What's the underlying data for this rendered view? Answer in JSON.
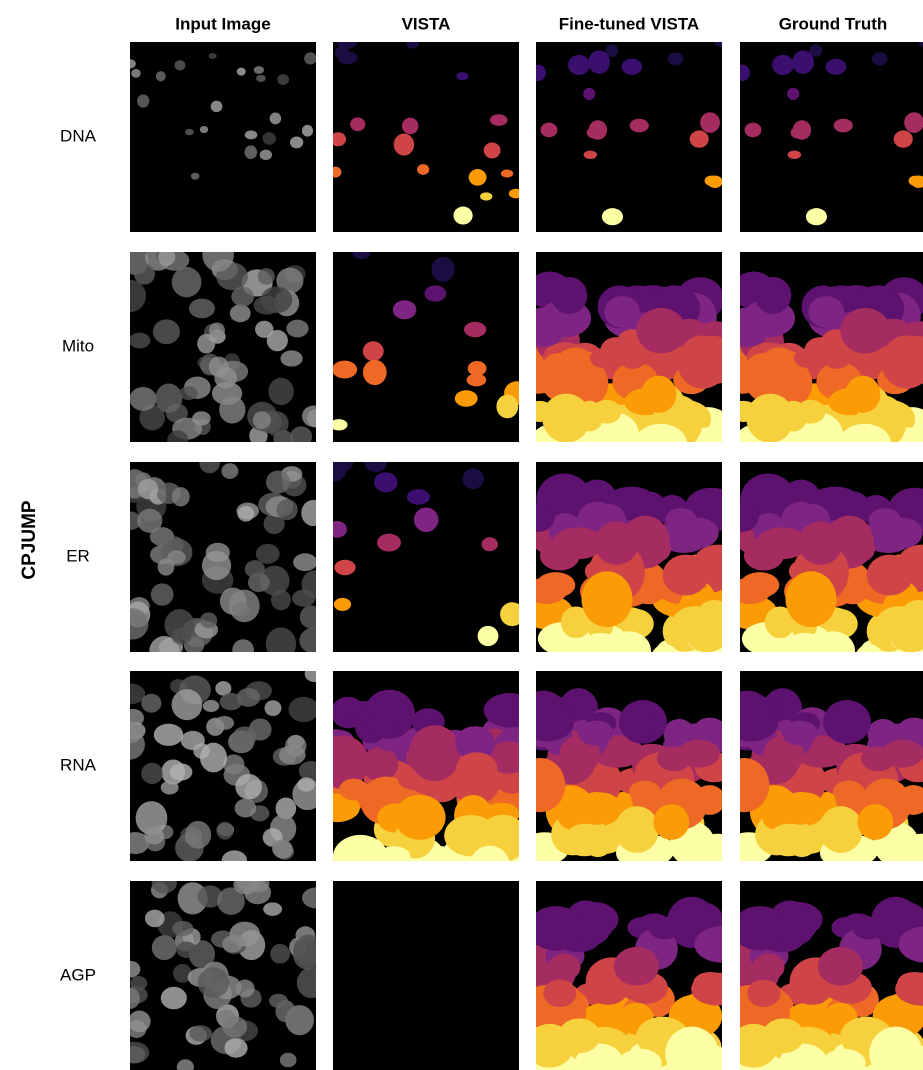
{
  "columns": [
    "Input Image",
    "VISTA",
    "Fine-tuned VISTA",
    "Ground Truth"
  ],
  "group_label": "CPJUMP",
  "rows": [
    {
      "label": "DNA"
    },
    {
      "label": "Mito"
    },
    {
      "label": "ER"
    },
    {
      "label": "RNA"
    },
    {
      "label": "AGP"
    }
  ]
}
